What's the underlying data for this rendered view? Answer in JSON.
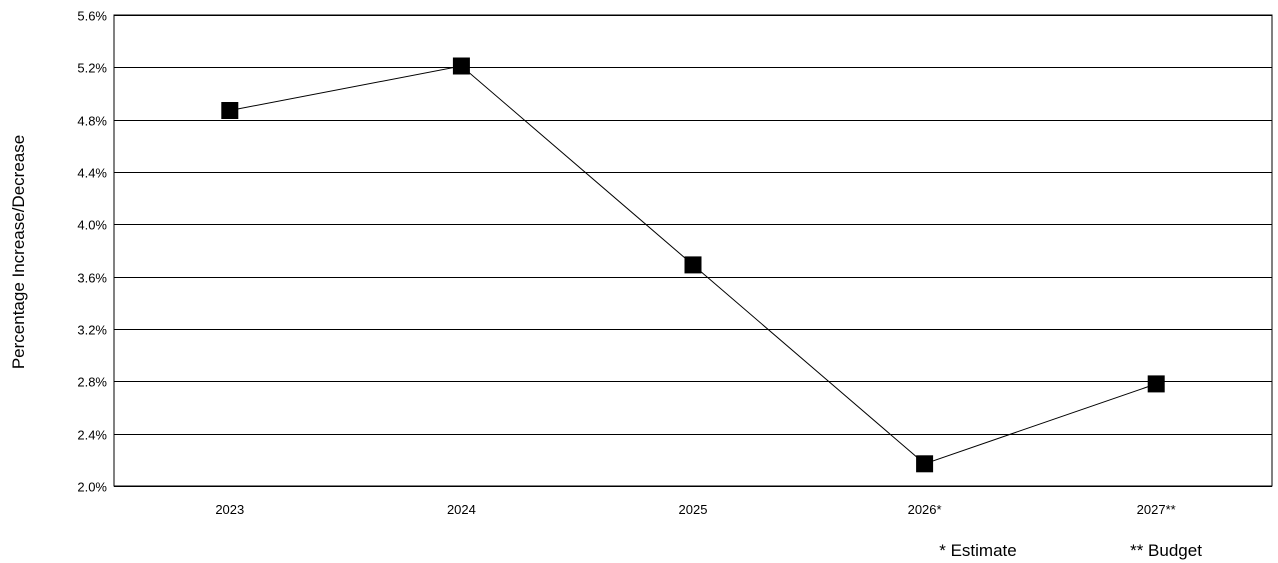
{
  "chart_data": {
    "type": "line",
    "title": "",
    "xlabel": "",
    "ylabel": "Percentage Increase/Decrease",
    "categories": [
      "2023",
      "2024",
      "2025",
      "2026*",
      "2027**"
    ],
    "series": [
      {
        "values": [
          4.87,
          5.21,
          3.69,
          2.17,
          2.78
        ]
      }
    ],
    "ylim": [
      2.0,
      5.6
    ],
    "y_ticks": [
      2.0,
      2.4,
      2.8,
      3.2,
      3.6,
      4.0,
      4.4,
      4.8,
      5.2,
      5.6
    ],
    "y_tick_labels": [
      "2.0%",
      "2.4%",
      "2.8%",
      "3.2%",
      "3.6%",
      "4.0%",
      "4.4%",
      "4.8%",
      "5.2%",
      "5.6%"
    ],
    "grid": true,
    "legend": "none",
    "marker": "square",
    "line_color": "#000000",
    "marker_color": "#000000",
    "notes": [
      "* Estimate",
      "** Budget"
    ]
  }
}
